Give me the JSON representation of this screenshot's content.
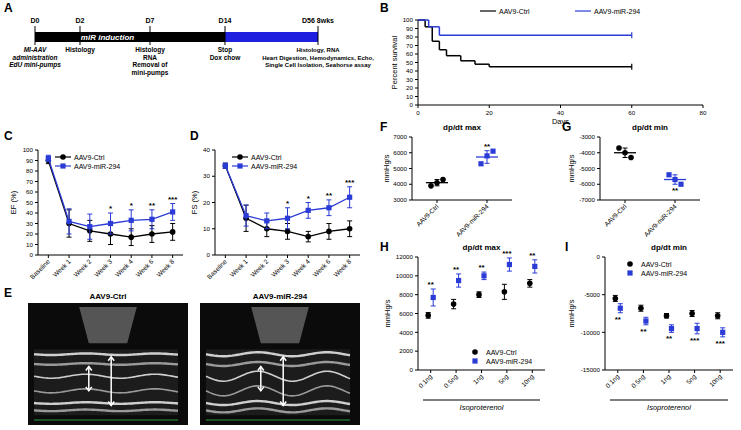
{
  "timeline": {
    "label": "A",
    "phases": [
      "miR induction"
    ],
    "markers": [
      {
        "day": "D0",
        "notes": [
          "MI-AAV",
          "administration",
          "EdU mini-pumps"
        ]
      },
      {
        "day": "D2",
        "notes": [
          "Histology"
        ]
      },
      {
        "day": "D7",
        "notes": [
          "Histology",
          "RNA",
          "Removal of",
          "mini-pumps"
        ]
      },
      {
        "day": "D14",
        "notes": [
          "Stop",
          "Dox chow"
        ]
      },
      {
        "day": "D56 8wks",
        "notes": [
          "Histology, RNA",
          "Heart Digestion, Hemodynamics, Echo,",
          "Single Cell Isolation, Seahorse assay"
        ]
      }
    ]
  },
  "echo": {
    "label": "E",
    "titles": [
      "AAV9-Ctrl",
      "AAV9-miR-294"
    ]
  },
  "chart_data": [
    {
      "type": "line",
      "label": "B",
      "line_style": "step",
      "ylabel": "Percent survival",
      "xlabel": "Days",
      "xlim": [
        0,
        80
      ],
      "xticks": [
        0,
        20,
        40,
        60,
        80
      ],
      "ylim": [
        0,
        100
      ],
      "yticks": [
        0,
        10,
        20,
        30,
        40,
        50,
        60,
        70,
        80,
        90,
        100
      ],
      "legend": "top",
      "series": [
        {
          "name": "AAV9-Ctrl",
          "color": "#000000",
          "x": [
            0,
            2,
            4,
            6,
            8,
            12,
            16,
            20,
            60
          ],
          "values": [
            100,
            92,
            75,
            65,
            58,
            52,
            48,
            45,
            45
          ]
        },
        {
          "name": "AAV9-miR-294",
          "color": "#2b3bd6",
          "x": [
            0,
            3,
            6,
            60
          ],
          "values": [
            100,
            92,
            82,
            82
          ]
        }
      ]
    },
    {
      "type": "line",
      "label": "C",
      "ylabel": "EF (%)",
      "categories": [
        "Baseline",
        "Week 1",
        "Week 2",
        "Week 3",
        "Week 4",
        "Week 6",
        "Week 8"
      ],
      "ylim": [
        0,
        100
      ],
      "yticks": [
        0,
        10,
        20,
        30,
        40,
        50,
        60,
        70,
        80,
        90,
        100
      ],
      "legend": "upper left",
      "series": [
        {
          "name": "AAV9-Ctrl",
          "color": "#000000",
          "marker": "circle",
          "values": [
            90,
            30,
            23,
            20,
            17,
            20,
            22
          ],
          "errors": [
            3,
            13,
            10,
            10,
            8,
            8,
            8
          ]
        },
        {
          "name": "AAV9-miR-294",
          "color": "#2b3bd6",
          "marker": "square",
          "values": [
            92,
            32,
            27,
            30,
            33,
            34,
            41
          ],
          "errors": [
            3,
            12,
            12,
            10,
            10,
            9,
            8
          ]
        }
      ],
      "significance": [
        null,
        null,
        null,
        "*",
        "*",
        "**",
        "***"
      ]
    },
    {
      "type": "line",
      "label": "D",
      "ylabel": "FS (%)",
      "categories": [
        "Baseline",
        "Week 1",
        "Week 2",
        "Week 3",
        "Week 4",
        "Week 6",
        "Week 8"
      ],
      "ylim": [
        0,
        40
      ],
      "yticks": [
        0,
        10,
        20,
        30,
        40
      ],
      "legend": "upper left",
      "series": [
        {
          "name": "AAV9-Ctrl",
          "color": "#000000",
          "marker": "circle",
          "values": [
            34,
            14,
            10,
            9,
            7,
            9,
            10
          ],
          "errors": [
            1,
            5,
            3,
            3,
            2,
            3,
            3
          ]
        },
        {
          "name": "AAV9-miR-294",
          "color": "#2b3bd6",
          "marker": "square",
          "values": [
            34,
            15,
            13,
            14,
            17,
            18,
            22
          ],
          "errors": [
            1,
            4,
            3,
            4,
            3,
            3,
            4
          ]
        }
      ],
      "significance": [
        null,
        null,
        null,
        "*",
        "*",
        "**",
        "***"
      ]
    },
    {
      "type": "dot",
      "label": "F",
      "title": "dp/dt max",
      "ylabel": "mmHg/s",
      "categories": [
        "AAV9-Ctrl",
        "AAV9-miR-294"
      ],
      "colors": [
        "#000000",
        "#2b3bd6"
      ],
      "ylim": [
        3000,
        7000
      ],
      "yticks": [
        3000,
        4000,
        5000,
        6000,
        7000
      ],
      "points": [
        [
          3900,
          4100,
          4300
        ],
        [
          5300,
          5800,
          6100
        ]
      ],
      "values": [
        4100,
        5730
      ],
      "errors": [
        200,
        400
      ],
      "significance": [
        null,
        "**"
      ]
    },
    {
      "type": "dot",
      "label": "G",
      "title": "dp/dt min",
      "ylabel": "mmHg/s",
      "categories": [
        "AAV9-Ctrl",
        "AAV9-miR-294"
      ],
      "colors": [
        "#000000",
        "#2b3bd6"
      ],
      "ylim": [
        -7000,
        -3000
      ],
      "yticks": [
        -3000,
        -4000,
        -5000,
        -6000,
        -7000
      ],
      "points": [
        [
          -3700,
          -4000,
          -4300
        ],
        [
          -5400,
          -5700,
          -6000
        ]
      ],
      "values": [
        -4000,
        -5700
      ],
      "errors": [
        300,
        300
      ],
      "significance": [
        null,
        "**"
      ]
    },
    {
      "type": "scatter",
      "label": "H",
      "title": "dp/dt max",
      "ylabel": "mmHg/s",
      "xlabel": "Isoproterenol",
      "categories": [
        "0.1ng",
        "0.5ng",
        "1ng",
        "5ng",
        "10ng"
      ],
      "ylim": [
        0,
        12000
      ],
      "yticks": [
        0,
        2000,
        4000,
        6000,
        8000,
        10000,
        12000
      ],
      "legend": "lower right",
      "series": [
        {
          "name": "AAV9-Ctrl",
          "color": "#000000",
          "marker": "circle",
          "values": [
            5800,
            7000,
            8000,
            8300,
            9200
          ],
          "errors": [
            300,
            500,
            300,
            800,
            400
          ]
        },
        {
          "name": "AAV9-miR-294",
          "color": "#2b3bd6",
          "marker": "square",
          "values": [
            7700,
            9500,
            10000,
            11200,
            11000
          ],
          "errors": [
            900,
            700,
            400,
            700,
            700
          ]
        }
      ],
      "significance": [
        "**",
        "**",
        "**",
        "***",
        "**"
      ]
    },
    {
      "type": "scatter",
      "label": "I",
      "title": "dp/dt min",
      "ylabel": "mmHg/s",
      "xlabel": "Isoproterenol",
      "categories": [
        "0.1ng",
        "0.5ng",
        "1ng",
        "5ng",
        "10ng"
      ],
      "ylim": [
        -15000,
        0
      ],
      "yticks": [
        0,
        -5000,
        -10000,
        -15000
      ],
      "legend": "upper left",
      "series": [
        {
          "name": "AAV9-Ctrl",
          "color": "#000000",
          "marker": "circle",
          "values": [
            -5500,
            -6800,
            -7800,
            -7500,
            -7800
          ],
          "errors": [
            400,
            400,
            300,
            400,
            400
          ]
        },
        {
          "name": "AAV9-miR-294",
          "color": "#2b3bd6",
          "marker": "square",
          "values": [
            -6800,
            -8500,
            -9500,
            -9500,
            -10000
          ],
          "errors": [
            600,
            500,
            500,
            700,
            600
          ]
        }
      ],
      "significance": [
        "**",
        "**",
        "**",
        "***",
        "***"
      ]
    }
  ]
}
